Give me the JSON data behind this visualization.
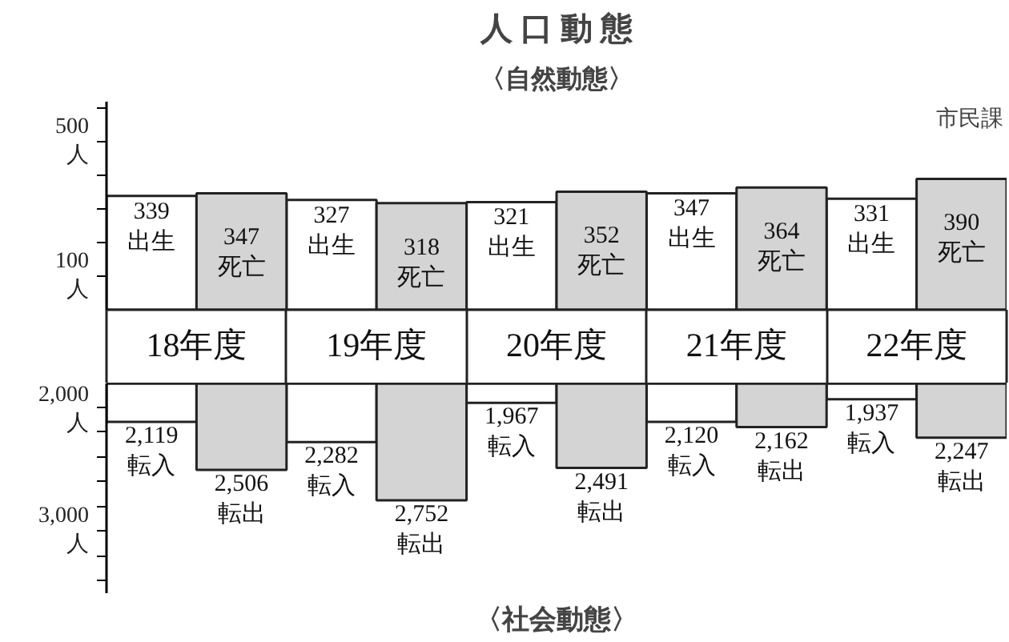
{
  "chart_data": [
    {
      "type": "bar",
      "title": "人 口 動 態",
      "subtitle": "〈自然動態〉",
      "annotations": [
        "市民課"
      ],
      "categories": [
        "18年度",
        "19年度",
        "20年度",
        "21年度",
        "22年度"
      ],
      "series": [
        {
          "name": "出生",
          "color": "#ffffff",
          "values": [
            339,
            327,
            321,
            347,
            331
          ]
        },
        {
          "name": "死亡",
          "color": "#d4d4d4",
          "values": [
            347,
            318,
            352,
            364,
            390
          ]
        }
      ],
      "ylim": [
        0,
        620
      ],
      "yticks": [
        {
          "value": 100,
          "label": "100\n人"
        },
        {
          "value": 200,
          "label": null
        },
        {
          "value": 300,
          "label": null
        },
        {
          "value": 400,
          "label": null
        },
        {
          "value": 500,
          "label": "500\n人"
        },
        {
          "value": 600,
          "label": null
        }
      ],
      "data_labels": true
    },
    {
      "type": "bar",
      "title": "〈社会動態〉",
      "categories": [
        null,
        null,
        null,
        null,
        null
      ],
      "series": [
        {
          "name": "転入",
          "color": "#ffffff",
          "values": [
            2119,
            2282,
            1967,
            2120,
            1937
          ],
          "value_labels": [
            "2,119",
            "2,282",
            "1,967",
            "2,120",
            "1,937"
          ]
        },
        {
          "name": "転出",
          "color": "#d4d4d4",
          "values": [
            2506,
            2752,
            2491,
            2162,
            2247
          ],
          "value_labels": [
            "2,506",
            "2,752",
            "2,491",
            "2,162",
            "2,247"
          ]
        }
      ],
      "ylim": [
        3500,
        1810
      ],
      "yticks": [
        {
          "value": 2000,
          "label": "2,000\n人"
        },
        {
          "value": 2200,
          "label": null
        },
        {
          "value": 2400,
          "label": null
        },
        {
          "value": 2600,
          "label": null
        },
        {
          "value": 2800,
          "label": null
        },
        {
          "value": 3000,
          "label": "3,000\n人"
        },
        {
          "value": 3200,
          "label": null
        },
        {
          "value": 3400,
          "label": null
        }
      ],
      "tick_labels": "y"
    }
  ]
}
